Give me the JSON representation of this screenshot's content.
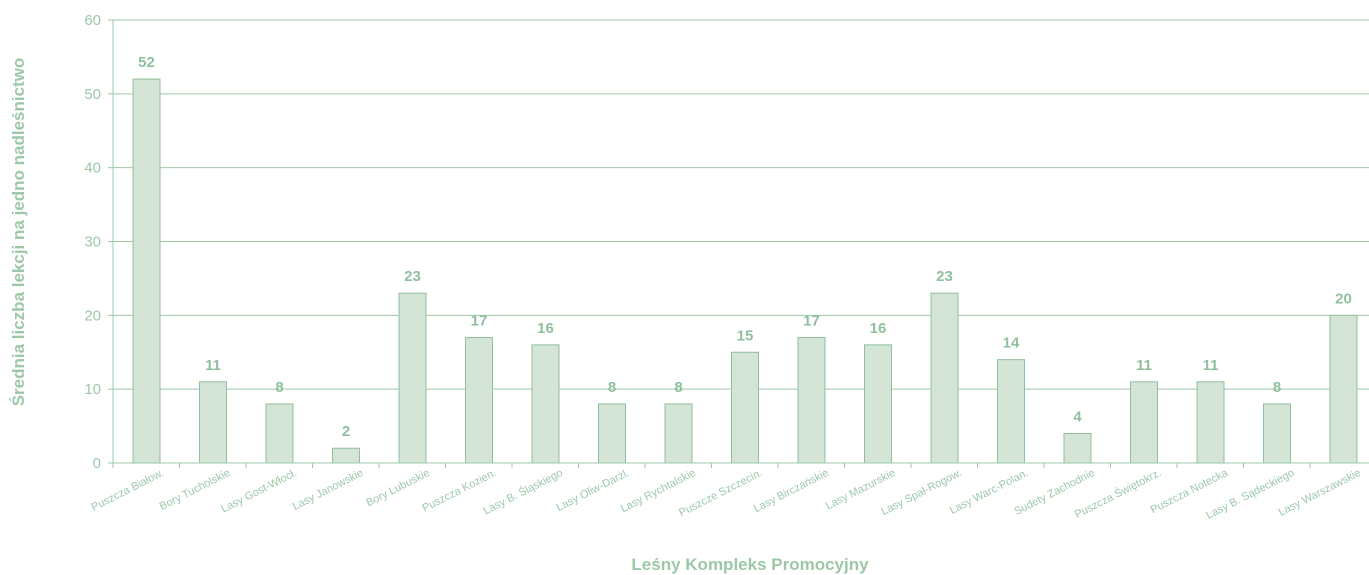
{
  "chart_data": {
    "type": "bar",
    "xlabel": "Leśny Kompleks Promocyjny",
    "ylabel": "Średnia liczba lekcji na jedno nadleśnictwo",
    "ylim": [
      0,
      60
    ],
    "yticks": [
      0,
      10,
      20,
      30,
      40,
      50,
      60
    ],
    "grid": true,
    "categories": [
      "Puszcza Białow.",
      "Bory Tucholskie",
      "Lasy Gost-Włocł.",
      "Lasy Janowskie",
      "Bory Lubuskie",
      "Puszcza Kozien.",
      "Lasy B. Śląskiego",
      "Lasy Oliw-Darżl.",
      "Lasy Rychtalskie",
      "Puszcze Szczecin.",
      "Lasy Birczańskie",
      "Lasy Mazurskie",
      "Lasy Spał-Rogow.",
      "Lasy Warc-Polan.",
      "Sudety Zachodnie",
      "Puszcza Świętokrz.",
      "Puszcza Notecka",
      "Lasy B. Sądeckiego",
      "Lasy Warszawskie"
    ],
    "values": [
      52,
      11,
      8,
      2,
      23,
      17,
      16,
      8,
      8,
      15,
      17,
      16,
      23,
      14,
      4,
      11,
      11,
      8,
      20
    ],
    "colors": {
      "bar_fill": "#d4e4d6",
      "bar_stroke": "#8fbf9c",
      "grid": "#9cc8a8",
      "text": "#9cc8a8"
    }
  }
}
